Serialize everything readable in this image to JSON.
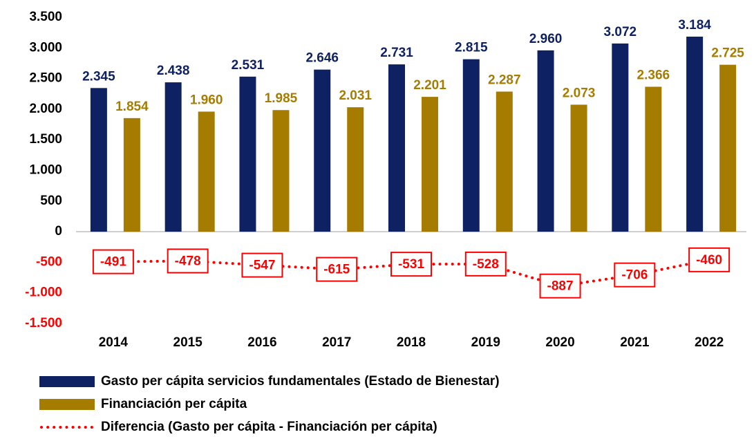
{
  "chart_data": {
    "type": "bar_line",
    "categories": [
      "2014",
      "2015",
      "2016",
      "2017",
      "2018",
      "2019",
      "2020",
      "2021",
      "2022"
    ],
    "series": [
      {
        "name": "Gasto per cápita servicios fundamentales (Estado de Bienestar)",
        "color": "#0e2263",
        "type": "bar",
        "values": [
          2345,
          2438,
          2531,
          2646,
          2731,
          2815,
          2960,
          3072,
          3184
        ],
        "value_labels": [
          "2.345",
          "2.438",
          "2.531",
          "2.646",
          "2.731",
          "2.815",
          "2.960",
          "3.072",
          "3.184"
        ]
      },
      {
        "name": "Financiación per cápita",
        "color": "#a67c00",
        "type": "bar",
        "values": [
          1854,
          1960,
          1985,
          2031,
          2201,
          2287,
          2073,
          2366,
          2725
        ],
        "value_labels": [
          "1.854",
          "1.960",
          "1.985",
          "2.031",
          "2.201",
          "2.287",
          "2.073",
          "2.366",
          "2.725"
        ]
      },
      {
        "name": "Diferencia (Gasto per cápita - Financiación per cápita)",
        "color": "#ff0000",
        "type": "line",
        "values": [
          -491,
          -478,
          -547,
          -615,
          -531,
          -528,
          -887,
          -706,
          -460
        ]
      }
    ],
    "ylim": [
      -1500,
      3500
    ],
    "yticks": [
      {
        "value": -1500,
        "label": "-1.500"
      },
      {
        "value": -1000,
        "label": "-1.000"
      },
      -500,
      0,
      500,
      {
        "value": 1000,
        "label": "1.000"
      },
      {
        "value": 1500,
        "label": "1.500"
      },
      {
        "value": 2000,
        "label": "2.000"
      },
      {
        "value": 2500,
        "label": "2.500"
      },
      {
        "value": 3000,
        "label": "3.000"
      },
      {
        "value": 3500,
        "label": "3.500"
      }
    ],
    "legend": "bottom"
  }
}
